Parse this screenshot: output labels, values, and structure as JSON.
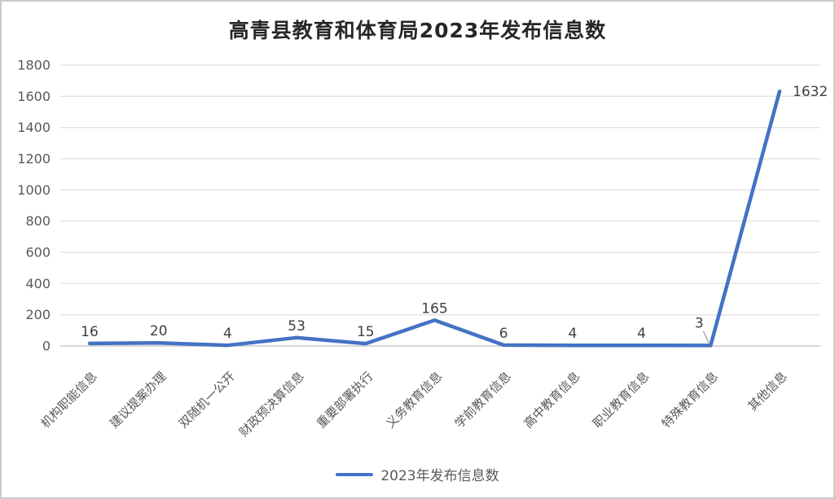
{
  "title": "高青县教育和体育局2023年发布信息数",
  "legend": {
    "label": "2023年发布信息数"
  },
  "colors": {
    "line": "#4472C4",
    "gridline": "#E2E2E2",
    "axis": "#C9C9C9",
    "tick_label": "#595959",
    "data_label": "#3F3F3F",
    "title": "#262626",
    "leader": "#A6A6A6"
  },
  "chart_data": {
    "type": "line",
    "title": "高青县教育和体育局2023年发布信息数",
    "categories": [
      "机构职能信息",
      "建议提案办理",
      "双随机一公开",
      "财政预决算信息",
      "重要部署执行",
      "义务教育信息",
      "学前教育信息",
      "高中教育信息",
      "职业教育信息",
      "特殊教育信息",
      "其他信息"
    ],
    "series": [
      {
        "name": "2023年发布信息数",
        "values": [
          16,
          20,
          4,
          53,
          15,
          165,
          6,
          4,
          4,
          3,
          1632
        ]
      }
    ],
    "data_labels": true,
    "label_placements": [
      "above",
      "above",
      "above",
      "above",
      "above",
      "above",
      "above",
      "above",
      "above",
      "callout",
      "right"
    ],
    "xlabel": "",
    "ylabel": "",
    "ylim": [
      0,
      1800
    ],
    "yticks": [
      0,
      200,
      400,
      600,
      800,
      1000,
      1200,
      1400,
      1600,
      1800
    ],
    "grid": "horizontal",
    "legend_position": "bottom"
  }
}
